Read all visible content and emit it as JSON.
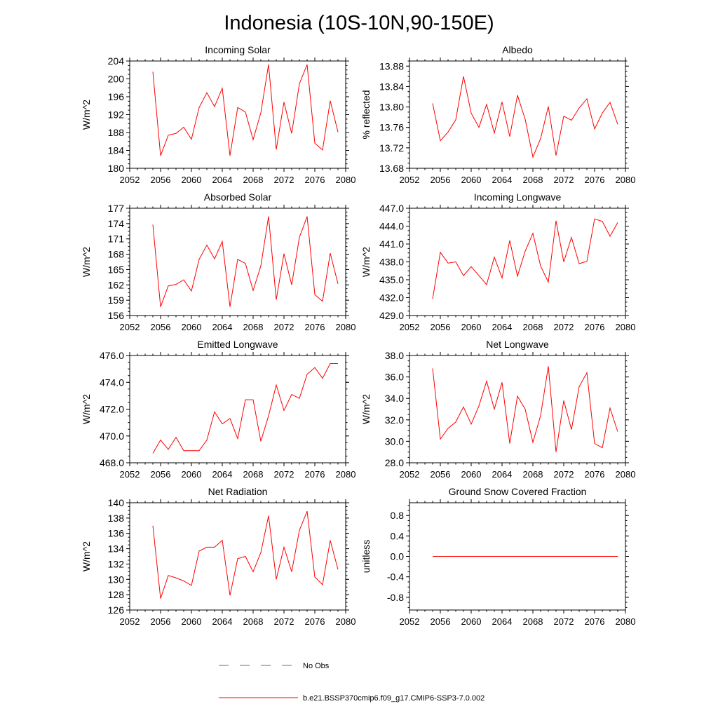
{
  "figure": {
    "title": "Indonesia (10S-10N,90-150E)",
    "series_color": "#ff0000",
    "obs_color": "#5566cc"
  },
  "legend": {
    "obs_label": "No Obs",
    "model_label": "b.e21.BSSP370cmip6.f09_g17.CMIP6-SSP3-7.0.002"
  },
  "chart_data": [
    {
      "type": "line",
      "title": "Incoming Solar",
      "xlabel": "",
      "ylabel": "W/m^2",
      "xlim": [
        2052,
        2080
      ],
      "ylim": [
        180,
        204
      ],
      "xticks": [
        2052,
        2056,
        2060,
        2064,
        2068,
        2072,
        2076,
        2080
      ],
      "yticks": [
        "180",
        "184",
        "188",
        "192",
        "196",
        "200",
        "204"
      ],
      "grid": false,
      "x": [
        2055,
        2056,
        2057,
        2058,
        2059,
        2060,
        2061,
        2062,
        2063,
        2064,
        2065,
        2066,
        2067,
        2068,
        2069,
        2070,
        2071,
        2072,
        2073,
        2074,
        2075,
        2076,
        2077,
        2078,
        2079
      ],
      "series": [
        {
          "name": "b.e21.BSSP370cmip6.f09_g17.CMIP6-SSP3-7.0.002",
          "values": [
            201.6,
            182.8,
            187.4,
            187.8,
            189.2,
            186.5,
            193.6,
            196.9,
            193.8,
            197.9,
            182.8,
            193.6,
            192.6,
            186.4,
            192.4,
            203.2,
            184.2,
            194.8,
            187.8,
            198.9,
            203.2,
            185.6,
            184.1,
            195.1,
            188.1
          ]
        }
      ]
    },
    {
      "type": "line",
      "title": "Albedo",
      "xlabel": "",
      "ylabel": "% reflected",
      "xlim": [
        2052,
        2080
      ],
      "ylim": [
        13.68,
        13.89
      ],
      "xticks": [
        2052,
        2056,
        2060,
        2064,
        2068,
        2072,
        2076,
        2080
      ],
      "yticks": [
        "13.68",
        "13.72",
        "13.76",
        "13.80",
        "13.84",
        "13.88"
      ],
      "grid": false,
      "x": [
        2055,
        2056,
        2057,
        2058,
        2059,
        2060,
        2061,
        2062,
        2063,
        2064,
        2065,
        2066,
        2067,
        2068,
        2069,
        2070,
        2071,
        2072,
        2073,
        2074,
        2075,
        2076,
        2077,
        2078,
        2079
      ],
      "series": [
        {
          "name": "b.e21.BSSP370cmip6.f09_g17.CMIP6-SSP3-7.0.002",
          "values": [
            13.807,
            13.734,
            13.751,
            13.775,
            13.86,
            13.788,
            13.76,
            13.805,
            13.749,
            13.81,
            13.742,
            13.823,
            13.776,
            13.702,
            13.738,
            13.801,
            13.705,
            13.782,
            13.774,
            13.798,
            13.816,
            13.757,
            13.788,
            13.809,
            13.766
          ]
        }
      ]
    },
    {
      "type": "line",
      "title": "Absorbed Solar",
      "xlabel": "",
      "ylabel": "W/m^2",
      "xlim": [
        2052,
        2080
      ],
      "ylim": [
        156,
        177
      ],
      "xticks": [
        2052,
        2056,
        2060,
        2064,
        2068,
        2072,
        2076,
        2080
      ],
      "yticks": [
        "156",
        "159",
        "162",
        "165",
        "168",
        "171",
        "174",
        "177"
      ],
      "grid": false,
      "x": [
        2055,
        2056,
        2057,
        2058,
        2059,
        2060,
        2061,
        2062,
        2063,
        2064,
        2065,
        2066,
        2067,
        2068,
        2069,
        2070,
        2071,
        2072,
        2073,
        2074,
        2075,
        2076,
        2077,
        2078,
        2079
      ],
      "series": [
        {
          "name": "b.e21.BSSP370cmip6.f09_g17.CMIP6-SSP3-7.0.002",
          "values": [
            173.8,
            157.7,
            161.8,
            162.1,
            163.0,
            160.8,
            167.0,
            169.8,
            167.1,
            170.5,
            157.7,
            167.0,
            166.2,
            160.9,
            165.7,
            175.4,
            159.1,
            168.1,
            162.0,
            171.3,
            175.4,
            160.1,
            158.8,
            168.2,
            162.2
          ]
        }
      ]
    },
    {
      "type": "line",
      "title": "Incoming Longwave",
      "xlabel": "",
      "ylabel": "W/m^2",
      "xlim": [
        2052,
        2080
      ],
      "ylim": [
        429.0,
        447.0
      ],
      "xticks": [
        2052,
        2056,
        2060,
        2064,
        2068,
        2072,
        2076,
        2080
      ],
      "yticks": [
        "429.0",
        "432.0",
        "435.0",
        "438.0",
        "441.0",
        "444.0",
        "447.0"
      ],
      "grid": false,
      "x": [
        2055,
        2056,
        2057,
        2058,
        2059,
        2060,
        2061,
        2062,
        2063,
        2064,
        2065,
        2066,
        2067,
        2068,
        2069,
        2070,
        2071,
        2072,
        2073,
        2074,
        2075,
        2076,
        2077,
        2078,
        2079
      ],
      "series": [
        {
          "name": "b.e21.BSSP370cmip6.f09_g17.CMIP6-SSP3-7.0.002",
          "values": [
            431.8,
            439.6,
            437.8,
            438.0,
            435.7,
            437.2,
            435.7,
            434.2,
            438.8,
            435.3,
            441.6,
            435.6,
            439.8,
            442.8,
            437.3,
            434.6,
            444.9,
            438.0,
            442.1,
            437.7,
            438.1,
            445.2,
            444.8,
            442.3,
            444.6
          ]
        }
      ]
    },
    {
      "type": "line",
      "title": "Emitted Longwave",
      "xlabel": "",
      "ylabel": "W/m^2",
      "xlim": [
        2052,
        2080
      ],
      "ylim": [
        468.0,
        476.0
      ],
      "xticks": [
        2052,
        2056,
        2060,
        2064,
        2068,
        2072,
        2076,
        2080
      ],
      "yticks": [
        "468.0",
        "470.0",
        "472.0",
        "474.0",
        "476.0"
      ],
      "grid": false,
      "x": [
        2055,
        2056,
        2057,
        2058,
        2059,
        2060,
        2061,
        2062,
        2063,
        2064,
        2065,
        2066,
        2067,
        2068,
        2069,
        2070,
        2071,
        2072,
        2073,
        2074,
        2075,
        2076,
        2077,
        2078,
        2079
      ],
      "series": [
        {
          "name": "b.e21.BSSP370cmip6.f09_g17.CMIP6-SSP3-7.0.002",
          "values": [
            468.7,
            469.7,
            469.0,
            469.9,
            468.9,
            468.9,
            468.9,
            469.7,
            471.8,
            470.9,
            471.3,
            469.8,
            472.7,
            472.7,
            469.6,
            471.5,
            473.8,
            471.9,
            473.1,
            472.8,
            474.6,
            475.1,
            474.3,
            475.4,
            475.4
          ]
        }
      ]
    },
    {
      "type": "line",
      "title": "Net Longwave",
      "xlabel": "",
      "ylabel": "W/m^2",
      "xlim": [
        2052,
        2080
      ],
      "ylim": [
        28.0,
        38.0
      ],
      "xticks": [
        2052,
        2056,
        2060,
        2064,
        2068,
        2072,
        2076,
        2080
      ],
      "yticks": [
        "28.0",
        "30.0",
        "32.0",
        "34.0",
        "36.0",
        "38.0"
      ],
      "grid": false,
      "x": [
        2055,
        2056,
        2057,
        2058,
        2059,
        2060,
        2061,
        2062,
        2063,
        2064,
        2065,
        2066,
        2067,
        2068,
        2069,
        2070,
        2071,
        2072,
        2073,
        2074,
        2075,
        2076,
        2077,
        2078,
        2079
      ],
      "series": [
        {
          "name": "b.e21.BSSP370cmip6.f09_g17.CMIP6-SSP3-7.0.002",
          "values": [
            36.8,
            30.2,
            31.2,
            31.8,
            33.2,
            31.6,
            33.3,
            35.6,
            33.0,
            35.5,
            29.8,
            34.2,
            33.0,
            29.9,
            32.4,
            37.0,
            29.0,
            33.8,
            31.1,
            35.1,
            36.4,
            29.8,
            29.4,
            33.1,
            30.9
          ]
        }
      ]
    },
    {
      "type": "line",
      "title": "Net Radiation",
      "xlabel": "",
      "ylabel": "W/m^2",
      "xlim": [
        2052,
        2080
      ],
      "ylim": [
        126,
        140
      ],
      "xticks": [
        2052,
        2056,
        2060,
        2064,
        2068,
        2072,
        2076,
        2080
      ],
      "yticks": [
        "126",
        "128",
        "130",
        "132",
        "134",
        "136",
        "138",
        "140"
      ],
      "grid": false,
      "x": [
        2055,
        2056,
        2057,
        2058,
        2059,
        2060,
        2061,
        2062,
        2063,
        2064,
        2065,
        2066,
        2067,
        2068,
        2069,
        2070,
        2071,
        2072,
        2073,
        2074,
        2075,
        2076,
        2077,
        2078,
        2079
      ],
      "series": [
        {
          "name": "b.e21.BSSP370cmip6.f09_g17.CMIP6-SSP3-7.0.002",
          "values": [
            137.0,
            127.5,
            130.5,
            130.2,
            129.8,
            129.2,
            133.7,
            134.2,
            134.2,
            135.1,
            127.9,
            132.7,
            133.0,
            131.0,
            133.5,
            138.3,
            130.0,
            134.2,
            131.0,
            136.4,
            138.9,
            130.3,
            129.3,
            135.1,
            131.3
          ]
        }
      ]
    },
    {
      "type": "line",
      "title": "Ground Snow Covered Fraction",
      "xlabel": "",
      "ylabel": "unitless",
      "xlim": [
        2052,
        2080
      ],
      "ylim": [
        -1.05,
        1.05
      ],
      "xticks": [
        2052,
        2056,
        2060,
        2064,
        2068,
        2072,
        2076,
        2080
      ],
      "yticks": [
        "-0.8",
        "-0.4",
        "0.0",
        "0.4",
        "0.8"
      ],
      "grid": false,
      "x": [
        2055,
        2056,
        2057,
        2058,
        2059,
        2060,
        2061,
        2062,
        2063,
        2064,
        2065,
        2066,
        2067,
        2068,
        2069,
        2070,
        2071,
        2072,
        2073,
        2074,
        2075,
        2076,
        2077,
        2078,
        2079
      ],
      "series": [
        {
          "name": "b.e21.BSSP370cmip6.f09_g17.CMIP6-SSP3-7.0.002",
          "values": [
            0,
            0,
            0,
            0,
            0,
            0,
            0,
            0,
            0,
            0,
            0,
            0,
            0,
            0,
            0,
            0,
            0,
            0,
            0,
            0,
            0,
            0,
            0,
            0,
            0
          ]
        }
      ]
    }
  ]
}
